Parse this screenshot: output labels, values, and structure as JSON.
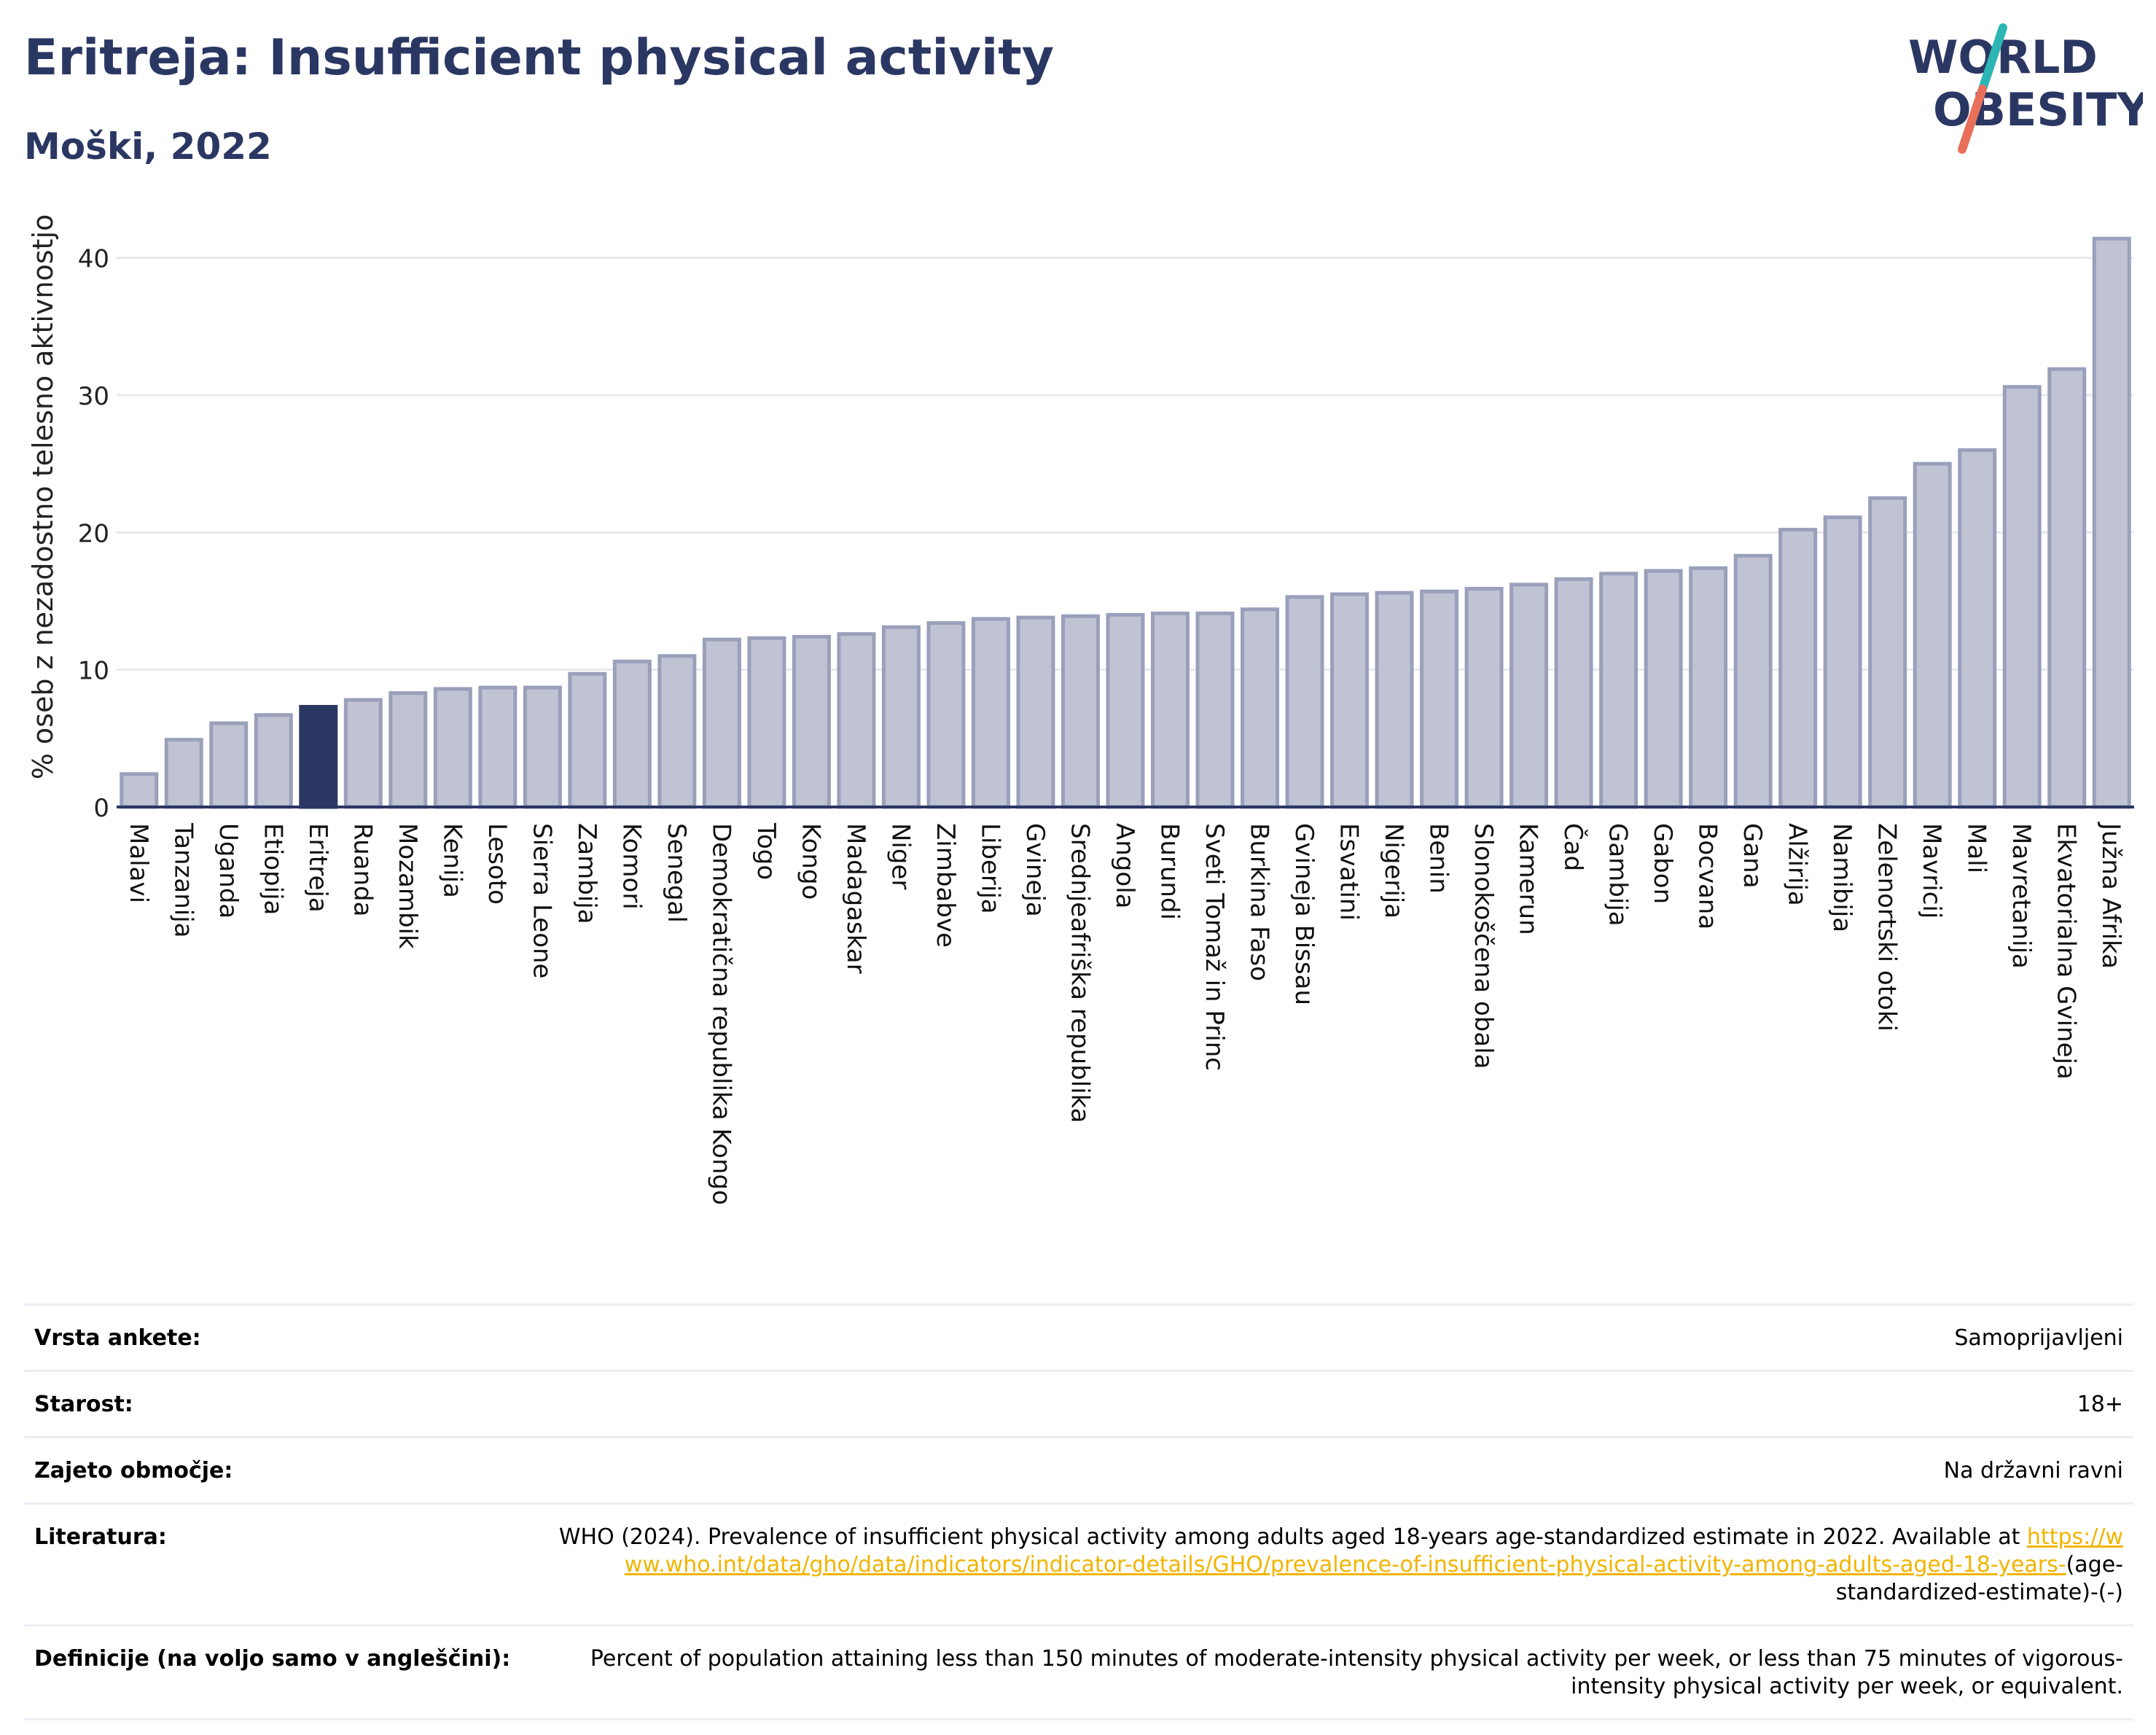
{
  "header": {
    "title": "Eritreja: Insufficient physical activity",
    "subtitle": "Moški, 2022"
  },
  "logo": {
    "line1": "WORLD",
    "line2": "OBESITY",
    "colors": {
      "text": "#2b3763",
      "slash_top": "#2cb5b5",
      "slash_bottom": "#e8705a"
    }
  },
  "colors": {
    "bar_fill": "#bfc3d3",
    "bar_stroke": "#9aa0bb",
    "highlight": "#2b3763",
    "grid": "#e8e9ef",
    "axis": "#2b3763",
    "link": "#f2b400"
  },
  "chart_data": {
    "type": "bar",
    "ylabel": "% oseb z nezadostno telesno aktivnostjo",
    "ylim": [
      0,
      42
    ],
    "yticks": [
      0,
      10,
      20,
      30,
      40
    ],
    "grid": true,
    "highlight_category": "Eritreja",
    "categories": [
      "Malavi",
      "Tanzanija",
      "Uganda",
      "Etiopija",
      "Eritreja",
      "Ruanda",
      "Mozambik",
      "Kenija",
      "Lesoto",
      "Sierra Leone",
      "Zambija",
      "Komori",
      "Senegal",
      "Demokratična republika Kongo",
      "Togo",
      "Kongo",
      "Madagaskar",
      "Niger",
      "Zimbabve",
      "Liberija",
      "Gvineja",
      "Srednjeafriška republika",
      "Angola",
      "Burundi",
      "Sveti Tomaž in Princ",
      "Burkina Faso",
      "Gvineja Bissau",
      "Esvatini",
      "Nigerija",
      "Benin",
      "Slonokoščena obala",
      "Kamerun",
      "Čad",
      "Gambija",
      "Gabon",
      "Bocvana",
      "Gana",
      "Alžirija",
      "Namibija",
      "Zelenortski otoki",
      "Mavricij",
      "Mali",
      "Mavretanija",
      "Ekvatorialna Gvineja",
      "Južna Afrika"
    ],
    "values": [
      2.4,
      4.9,
      6.1,
      6.7,
      7.3,
      7.8,
      8.3,
      8.6,
      8.7,
      8.7,
      9.7,
      10.6,
      11.0,
      12.2,
      12.3,
      12.4,
      12.6,
      13.1,
      13.4,
      13.7,
      13.8,
      13.9,
      14.0,
      14.1,
      14.1,
      14.4,
      15.3,
      15.5,
      15.6,
      15.7,
      15.9,
      16.2,
      16.6,
      17.0,
      17.2,
      17.4,
      18.3,
      20.2,
      21.1,
      22.5,
      25.0,
      26.0,
      30.6,
      31.9,
      41.4
    ]
  },
  "info": {
    "rows": [
      {
        "label": "Vrsta ankete:",
        "value": "Samoprijavljeni"
      },
      {
        "label": "Starost:",
        "value": "18+"
      },
      {
        "label": "Zajeto območje:",
        "value": "Na državni ravni"
      }
    ],
    "literature": {
      "label": "Literatura:",
      "text": "WHO (2024). Prevalence of insufficient physical activity among adults aged 18-years age-standardized estimate in 2022. Available at",
      "link": "https://www.who.int/data/gho/data/indicators/indicator-details/GHO/prevalence-of-insufficient-physical-activity-among-adults-aged-18-years-",
      "suffix": "(age-standardized-estimate)-(-)"
    },
    "definition": {
      "label": "Definicije (na voljo samo v angleščini):",
      "text": "Percent of population attaining less than 150 minutes of moderate-intensity physical activity per week, or less than 75 minutes of vigorous-intensity physical activity per week, or equivalent."
    }
  }
}
